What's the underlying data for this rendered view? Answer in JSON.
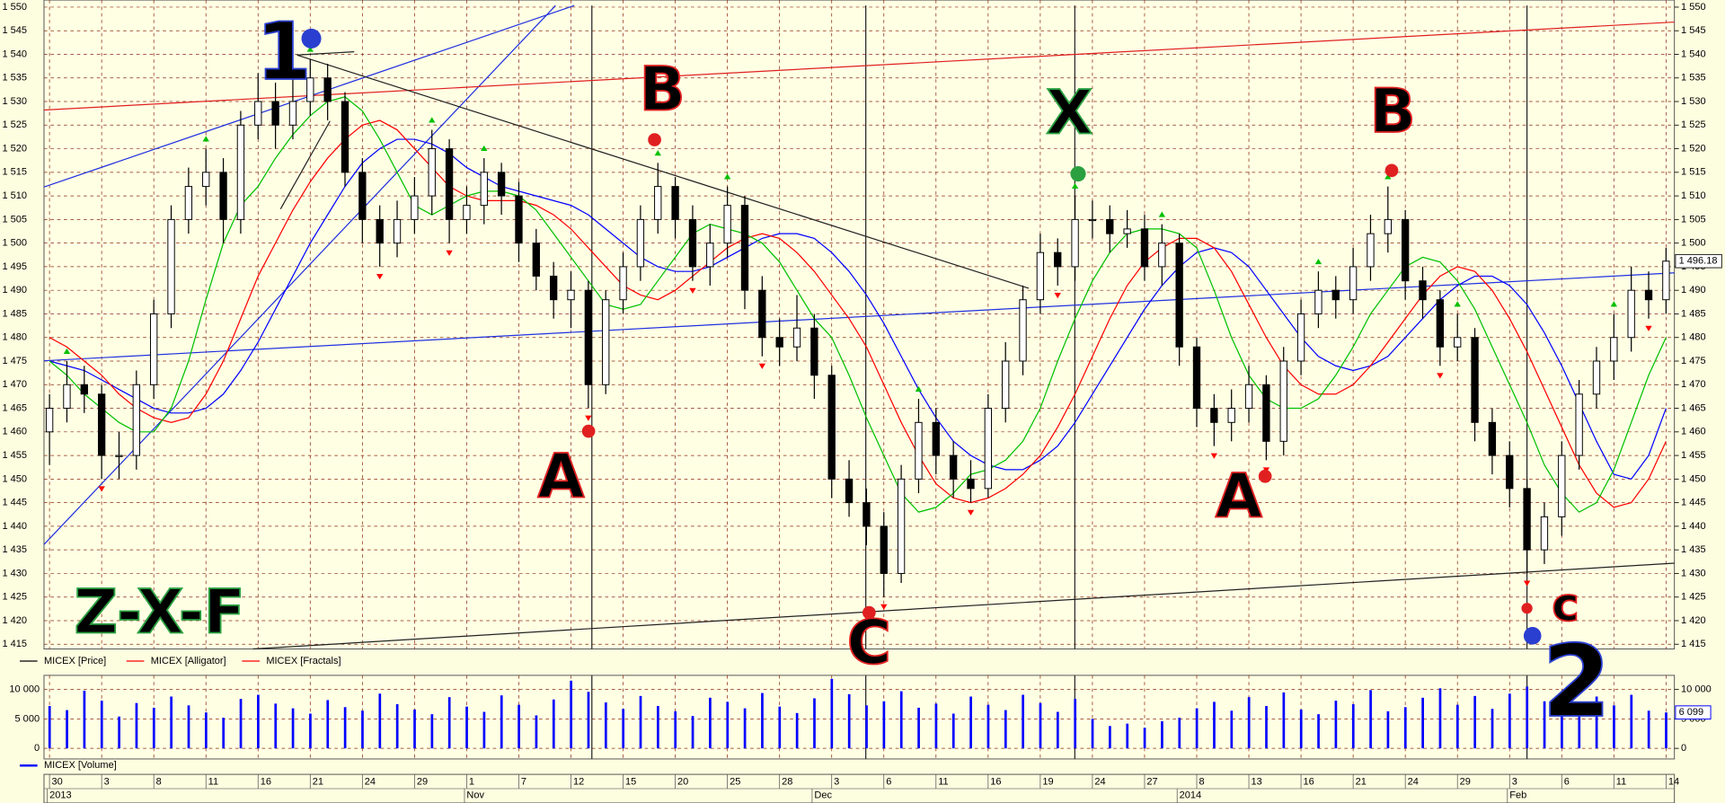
{
  "chart_data": {
    "type": "candlestick",
    "grid": true,
    "categories": [
      "30",
      null,
      null,
      "3",
      null,
      null,
      "8",
      null,
      null,
      "11",
      null,
      null,
      "16",
      null,
      null,
      "21",
      null,
      null,
      "24",
      null,
      null,
      "29",
      null,
      null,
      "1",
      null,
      null,
      "7",
      null,
      null,
      "12",
      null,
      null,
      "15",
      null,
      null,
      "20",
      null,
      null,
      "25",
      null,
      null,
      "28",
      null,
      null,
      "3",
      null,
      null,
      "6",
      null,
      null,
      "11",
      null,
      null,
      "16",
      null,
      null,
      "19",
      null,
      null,
      "24",
      null,
      null,
      "27",
      null,
      null,
      "8",
      null,
      null,
      "13",
      null,
      null,
      "16",
      null,
      null,
      "21",
      null,
      null,
      "24",
      null,
      null,
      "29",
      null,
      null,
      "3",
      null,
      null,
      "6",
      null,
      null,
      "11",
      null,
      null,
      "14"
    ],
    "month_labels": [
      {
        "index": 0,
        "label": "2013"
      },
      {
        "index": 24,
        "label": "Nov"
      },
      {
        "index": 44,
        "label": "Dec"
      },
      {
        "index": 65,
        "label": "2014"
      },
      {
        "index": 84,
        "label": "Feb"
      }
    ],
    "ylim": [
      1414,
      1551.5
    ],
    "yticks": [
      {
        "value": 1415,
        "label": "1 415"
      },
      {
        "value": 1420,
        "label": "1 420"
      },
      {
        "value": 1425,
        "label": "1 425"
      },
      {
        "value": 1430,
        "label": "1 430"
      },
      {
        "value": 1435,
        "label": "1 435"
      },
      {
        "value": 1440,
        "label": "1 440"
      },
      {
        "value": 1445,
        "label": "1 445"
      },
      {
        "value": 1450,
        "label": "1 450"
      },
      {
        "value": 1455,
        "label": "1 455"
      },
      {
        "value": 1460,
        "label": "1 460"
      },
      {
        "value": 1465,
        "label": "1 465"
      },
      {
        "value": 1470,
        "label": "1 470"
      },
      {
        "value": 1475,
        "label": "1 475"
      },
      {
        "value": 1480,
        "label": "1 480"
      },
      {
        "value": 1485,
        "label": "1 485"
      },
      {
        "value": 1490,
        "label": "1 490"
      },
      {
        "value": 1495,
        "label": "1 495"
      },
      {
        "value": 1500,
        "label": "1 500"
      },
      {
        "value": 1505,
        "label": "1 505"
      },
      {
        "value": 1510,
        "label": "1 510"
      },
      {
        "value": 1515,
        "label": "1 515"
      },
      {
        "value": 1520,
        "label": "1 520"
      },
      {
        "value": 1525,
        "label": "1 525"
      },
      {
        "value": 1530,
        "label": "1 530"
      },
      {
        "value": 1535,
        "label": "1 535"
      },
      {
        "value": 1540,
        "label": "1 540"
      },
      {
        "value": 1545,
        "label": "1 545"
      },
      {
        "value": 1550,
        "label": "1 550"
      }
    ],
    "series": [
      {
        "name": "MICEX [Price]",
        "color": "#000000",
        "open": [
          1460,
          1465,
          1470,
          1468,
          1455,
          1455,
          1470,
          1485,
          1505,
          1512,
          1515,
          1505,
          1525,
          1530,
          1525,
          1530,
          1535,
          1530,
          1515,
          1505,
          1500,
          1505,
          1510,
          1520,
          1505,
          1508,
          1515,
          1510,
          1500,
          1493,
          1488,
          1490,
          1470,
          1488,
          1495,
          1505,
          1512,
          1505,
          1495,
          1500,
          1508,
          1490,
          1480,
          1478,
          1482,
          1472,
          1450,
          1445,
          1440,
          1430,
          1450,
          1462,
          1455,
          1450,
          1448,
          1465,
          1475,
          1488,
          1498,
          1495,
          1505,
          1505,
          1502,
          1503,
          1495,
          1500,
          1478,
          1465,
          1462,
          1465,
          1470,
          1458,
          1475,
          1485,
          1490,
          1488,
          1495,
          1502,
          1505,
          1492,
          1488,
          1478,
          1480,
          1462,
          1455,
          1448,
          1435,
          1442,
          1455,
          1468,
          1475,
          1480,
          1490,
          1488
        ],
        "high": [
          1468,
          1475,
          1474,
          1470,
          1460,
          1473,
          1488,
          1508,
          1516,
          1520,
          1518,
          1528,
          1536,
          1534,
          1537,
          1539,
          1538,
          1532,
          1518,
          1508,
          1509,
          1514,
          1524,
          1522,
          1512,
          1518,
          1517,
          1513,
          1503,
          1496,
          1494,
          1492,
          1490,
          1498,
          1508,
          1517,
          1514,
          1508,
          1504,
          1512,
          1510,
          1493,
          1484,
          1489,
          1485,
          1474,
          1454,
          1448,
          1443,
          1453,
          1467,
          1465,
          1458,
          1454,
          1468,
          1479,
          1491,
          1502,
          1501,
          1510,
          1509,
          1508,
          1507,
          1506,
          1504,
          1502,
          1480,
          1468,
          1469,
          1474,
          1472,
          1478,
          1488,
          1494,
          1493,
          1499,
          1506,
          1512,
          1507,
          1495,
          1490,
          1485,
          1482,
          1465,
          1458,
          1450,
          1445,
          1458,
          1471,
          1478,
          1485,
          1495,
          1494,
          1499
        ],
        "low": [
          1453,
          1462,
          1464,
          1450,
          1450,
          1452,
          1467,
          1482,
          1502,
          1508,
          1500,
          1502,
          1522,
          1520,
          1522,
          1527,
          1526,
          1512,
          1500,
          1495,
          1497,
          1502,
          1506,
          1500,
          1502,
          1504,
          1506,
          1496,
          1490,
          1484,
          1482,
          1465,
          1468,
          1485,
          1492,
          1502,
          1501,
          1492,
          1491,
          1497,
          1486,
          1476,
          1474,
          1475,
          1467,
          1446,
          1442,
          1436,
          1425,
          1428,
          1447,
          1451,
          1446,
          1445,
          1446,
          1462,
          1472,
          1485,
          1491,
          1492,
          1501,
          1498,
          1499,
          1492,
          1491,
          1474,
          1461,
          1457,
          1458,
          1462,
          1454,
          1455,
          1472,
          1482,
          1484,
          1485,
          1492,
          1498,
          1488,
          1484,
          1474,
          1475,
          1458,
          1451,
          1444,
          1430,
          1432,
          1438,
          1452,
          1465,
          1471,
          1477,
          1484,
          1485
        ],
        "close": [
          1465,
          1470,
          1468,
          1455,
          1455,
          1470,
          1485,
          1505,
          1512,
          1515,
          1505,
          1525,
          1530,
          1525,
          1530,
          1535,
          1530,
          1515,
          1505,
          1500,
          1505,
          1510,
          1520,
          1505,
          1508,
          1515,
          1510,
          1500,
          1493,
          1488,
          1490,
          1470,
          1488,
          1495,
          1505,
          1512,
          1505,
          1495,
          1500,
          1508,
          1490,
          1480,
          1478,
          1482,
          1472,
          1450,
          1445,
          1440,
          1430,
          1450,
          1462,
          1455,
          1450,
          1448,
          1465,
          1475,
          1488,
          1498,
          1495,
          1505,
          1505,
          1502,
          1503,
          1495,
          1500,
          1478,
          1465,
          1462,
          1465,
          1470,
          1458,
          1475,
          1485,
          1490,
          1488,
          1495,
          1502,
          1505,
          1492,
          1488,
          1478,
          1480,
          1462,
          1455,
          1448,
          1435,
          1442,
          1455,
          1468,
          1475,
          1480,
          1490,
          1488,
          1496.18
        ],
        "last_value_label": "1 496.18"
      },
      {
        "name": "MICEX [Alligator]",
        "color": "#ff0000",
        "lines": [
          {
            "color": "#0000ff",
            "values": [
              1475,
              1474,
              1473,
              1471,
              1469,
              1467,
              1465,
              1464,
              1464,
              1465,
              1468,
              1473,
              1479,
              1486,
              1493,
              1500,
              1506,
              1512,
              1517,
              1520,
              1522,
              1522,
              1521,
              1519,
              1516,
              1514,
              1512,
              1511,
              1510,
              1509,
              1508,
              1506,
              1503,
              1500,
              1497,
              1495,
              1494,
              1494,
              1495,
              1497,
              1499,
              1501,
              1502,
              1502,
              1501,
              1498,
              1494,
              1489,
              1483,
              1476,
              1469,
              1463,
              1458,
              1455,
              1453,
              1452,
              1452,
              1454,
              1457,
              1462,
              1468,
              1474,
              1480,
              1486,
              1491,
              1495,
              1498,
              1499,
              1498,
              1495,
              1490,
              1485,
              1480,
              1476,
              1474,
              1473,
              1474,
              1476,
              1480,
              1484,
              1488,
              1491,
              1493,
              1493,
              1491,
              1487,
              1481,
              1474,
              1466,
              1458,
              1451,
              1450,
              1455,
              1465
            ]
          },
          {
            "color": "#ff0000",
            "values": [
              1480,
              1478,
              1475,
              1472,
              1468,
              1465,
              1463,
              1462,
              1463,
              1468,
              1475,
              1484,
              1493,
              1500,
              1507,
              1513,
              1518,
              1522,
              1525,
              1526,
              1524,
              1520,
              1516,
              1512,
              1510,
              1509,
              1509,
              1509,
              1508,
              1506,
              1503,
              1499,
              1495,
              1491,
              1489,
              1488,
              1490,
              1493,
              1496,
              1499,
              1501,
              1502,
              1501,
              1498,
              1494,
              1489,
              1484,
              1478,
              1470,
              1462,
              1455,
              1449,
              1446,
              1445,
              1446,
              1448,
              1451,
              1455,
              1461,
              1468,
              1476,
              1484,
              1491,
              1496,
              1499,
              1501,
              1501,
              1499,
              1494,
              1487,
              1480,
              1474,
              1470,
              1468,
              1468,
              1470,
              1474,
              1479,
              1484,
              1489,
              1493,
              1495,
              1494,
              1490,
              1484,
              1477,
              1469,
              1461,
              1453,
              1447,
              1444,
              1445,
              1450,
              1458
            ]
          },
          {
            "color": "#00c000",
            "values": [
              1475,
              1472,
              1468,
              1465,
              1462,
              1460,
              1460,
              1465,
              1475,
              1488,
              1500,
              1508,
              1512,
              1518,
              1523,
              1527,
              1530,
              1531,
              1528,
              1522,
              1515,
              1508,
              1506,
              1508,
              1510,
              1511,
              1511,
              1510,
              1507,
              1502,
              1497,
              1492,
              1487,
              1486,
              1487,
              1492,
              1497,
              1502,
              1504,
              1503,
              1502,
              1500,
              1496,
              1490,
              1484,
              1480,
              1472,
              1463,
              1455,
              1447,
              1443,
              1444,
              1447,
              1451,
              1452,
              1454,
              1458,
              1465,
              1475,
              1484,
              1492,
              1498,
              1502,
              1503,
              1503,
              1502,
              1499,
              1490,
              1480,
              1472,
              1467,
              1465,
              1465,
              1467,
              1472,
              1478,
              1485,
              1490,
              1495,
              1497,
              1496,
              1492,
              1486,
              1478,
              1470,
              1462,
              1453,
              1447,
              1443,
              1445,
              1452,
              1462,
              1472,
              1480
            ]
          }
        ]
      },
      {
        "name": "MICEX [Fractals]",
        "color": "#ff0000",
        "up": {
          "color": "#00c000",
          "index": [
            1,
            9,
            15,
            22,
            25,
            35,
            39,
            50,
            59,
            64,
            73,
            77,
            81,
            90
          ],
          "values": [
            1477,
            1522,
            1541,
            1526,
            1520,
            1519,
            1514,
            1469,
            1512,
            1506,
            1496,
            1514,
            1487,
            1487
          ]
        },
        "down": {
          "color": "#ff0000",
          "index": [
            3,
            19,
            23,
            31,
            37,
            41,
            48,
            53,
            58,
            67,
            70,
            80,
            85,
            92
          ],
          "values": [
            1448,
            1493,
            1498,
            1463,
            1490,
            1474,
            1423,
            1443,
            1489,
            1455,
            1452,
            1472,
            1428,
            1482
          ]
        }
      }
    ],
    "volume": {
      "type": "bar",
      "name": "MICEX [Volume]",
      "color": "#0000ff",
      "ylim": [
        -1800,
        12400
      ],
      "yticks": [
        0,
        {
          "value": 5000,
          "label": "5 000"
        },
        {
          "value": 10000,
          "label": "10 000"
        }
      ],
      "values": [
        7200,
        6500,
        9800,
        8100,
        5400,
        7700,
        6900,
        8800,
        7300,
        6100,
        5200,
        8400,
        9100,
        7600,
        6800,
        5900,
        8200,
        7000,
        6400,
        9300,
        7500,
        6600,
        5800,
        8700,
        7100,
        6200,
        9000,
        7400,
        5600,
        8300,
        11500,
        9600,
        7800,
        6700,
        8900,
        7200,
        6300,
        5500,
        8600,
        7900,
        6800,
        9400,
        7100,
        6000,
        8500,
        11800,
        9200,
        7300,
        8000,
        9700,
        6900,
        7600,
        5900,
        8800,
        7400,
        6500,
        9100,
        7700,
        6200,
        8400,
        5000,
        3800,
        4200,
        3500,
        4600,
        5200,
        6800,
        7900,
        6400,
        8700,
        7200,
        9500,
        6600,
        5800,
        8100,
        7500,
        9900,
        6300,
        7000,
        8600,
        10200,
        7400,
        8900,
        6700,
        9300,
        10500,
        8000,
        7100,
        6500,
        8800,
        7300,
        9100,
        6400,
        6099
      ],
      "last_value_label": "6 099"
    },
    "annotations": [
      {
        "text": "1",
        "color": "#2a3fd0"
      },
      {
        "text": "A",
        "color": "#e02020"
      },
      {
        "text": "B",
        "color": "#e02020"
      },
      {
        "text": "C",
        "color": "#e02020"
      },
      {
        "text": "X",
        "color": "#2aa040"
      },
      {
        "text": "A",
        "color": "#e02020"
      },
      {
        "text": "B",
        "color": "#e02020"
      },
      {
        "text": "c",
        "color": "#e02020"
      },
      {
        "text": "2",
        "color": "#2a3fd0"
      },
      {
        "text": "Z-X-F",
        "color": "#2aa040"
      }
    ]
  }
}
